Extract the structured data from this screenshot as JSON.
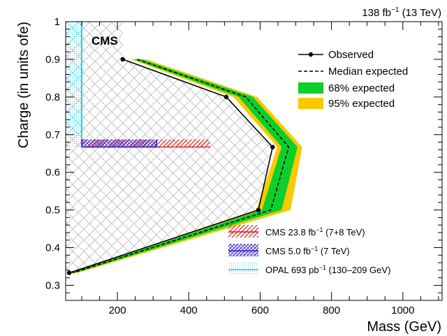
{
  "chart_data": {
    "type": "line",
    "header_right": {
      "lumi": "138 fb",
      "lumi_sup": "−1",
      "energy": " (13 TeV)"
    },
    "cms_label": "CMS",
    "xlabel": "Mass (GeV)",
    "ylabel": "Charge (in units ofe)",
    "xlim": [
      55,
      1110
    ],
    "ylim": [
      0.26,
      1.0
    ],
    "xticks": [
      200,
      400,
      600,
      800,
      1000
    ],
    "yticks": [
      0.3,
      0.4,
      0.5,
      0.6,
      0.7,
      0.8,
      0.9,
      1.0
    ],
    "ytick_labels": [
      "0.3",
      "0.4",
      "0.5",
      "0.6",
      "0.7",
      "0.8",
      "0.9",
      "1"
    ],
    "grid": false,
    "legend_placement": "top-right",
    "observed": {
      "name": "Observed",
      "points": [
        [
          215,
          0.9
        ],
        [
          505,
          0.8
        ],
        [
          635,
          0.667
        ],
        [
          595,
          0.5
        ],
        [
          65,
          0.333
        ]
      ]
    },
    "expected": {
      "name": "Median expected",
      "points": [
        [
          255,
          0.9
        ],
        [
          560,
          0.8
        ],
        [
          680,
          0.667
        ],
        [
          630,
          0.5
        ],
        [
          75,
          0.333
        ]
      ]
    },
    "band68": {
      "name": "68% expected",
      "upper": [
        [
          268,
          0.9
        ],
        [
          580,
          0.8
        ],
        [
          705,
          0.667
        ],
        [
          660,
          0.5
        ],
        [
          82,
          0.333
        ]
      ],
      "lower": [
        [
          245,
          0.9
        ],
        [
          540,
          0.8
        ],
        [
          660,
          0.667
        ],
        [
          605,
          0.5
        ],
        [
          70,
          0.333
        ]
      ]
    },
    "band95": {
      "name": "95% expected",
      "upper": [
        [
          280,
          0.9
        ],
        [
          592,
          0.8
        ],
        [
          718,
          0.667
        ],
        [
          685,
          0.5
        ],
        [
          88,
          0.333
        ]
      ],
      "lower": [
        [
          238,
          0.9
        ],
        [
          525,
          0.8
        ],
        [
          648,
          0.667
        ],
        [
          590,
          0.5
        ],
        [
          65,
          0.333
        ]
      ]
    },
    "previous_results": [
      {
        "name": "CMS 23.8 fb",
        "sup": "−1",
        "suffix": " (7+8 TeV)",
        "x": [
          100,
          460
        ],
        "y": 0.667,
        "color": "#e32626"
      },
      {
        "name": "CMS 5.0 fb",
        "sup": "−1",
        "suffix": " (7 TeV)",
        "x": [
          100,
          310
        ],
        "y": 0.667,
        "color": "#2a2ad6"
      },
      {
        "name": "OPAL 693 pb",
        "sup": "−1",
        "suffix": " (130–209 GeV)",
        "x": [
          55,
          100
        ],
        "y": [
          0.667,
          1.0
        ],
        "color": "#22d6e6"
      }
    ],
    "colors": {
      "band68": "#0ccf2c",
      "band95": "#fcc800",
      "observed": "#000000",
      "expected": "#000000",
      "excluded_hatch": "#b8b8b8"
    }
  }
}
